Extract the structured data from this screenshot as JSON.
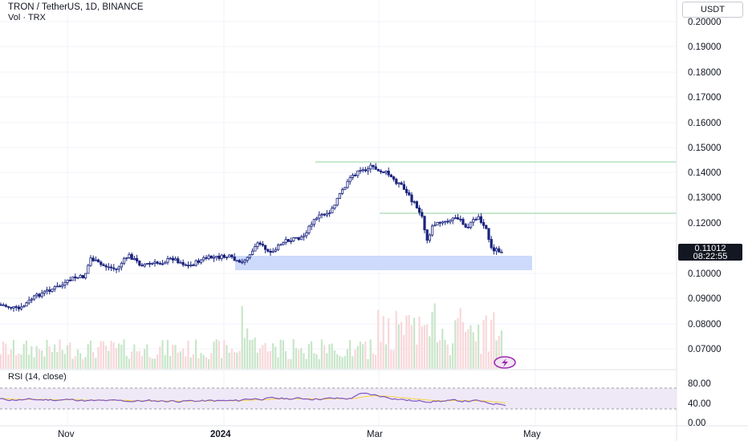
{
  "header": {
    "symbol_line": "TRON / TetherUS, 1D, BINANCE",
    "volume_line": "Vol · TRX",
    "currency_button": "USDT"
  },
  "price_axis": {
    "labels": [
      "0.20000",
      "0.19000",
      "0.18000",
      "0.17000",
      "0.16000",
      "0.15000",
      "0.14000",
      "0.13000",
      "0.12000",
      "0.11012",
      "0.10000",
      "0.09000",
      "0.08000",
      "0.07000"
    ]
  },
  "last_price": {
    "value": "0.11012",
    "countdown": "08:22:55"
  },
  "rsi": {
    "label": "RSI (14, close)",
    "axis_labels": [
      "80.00",
      "40.00",
      "0.00"
    ]
  },
  "time_axis": {
    "labels": [
      "Nov",
      "2024",
      "Mar",
      "May"
    ]
  },
  "colors": {
    "up": "#26a69a",
    "down": "#1a237e",
    "candle": "#2134a8",
    "rsi_line": "#7e57c2",
    "rsi_ma": "#f9d23c",
    "support_zone": "#c5d4fb",
    "resistance_line": "#8fd19e",
    "price_tag_bg": "#131722"
  },
  "icons": [
    "flash-icon"
  ]
}
